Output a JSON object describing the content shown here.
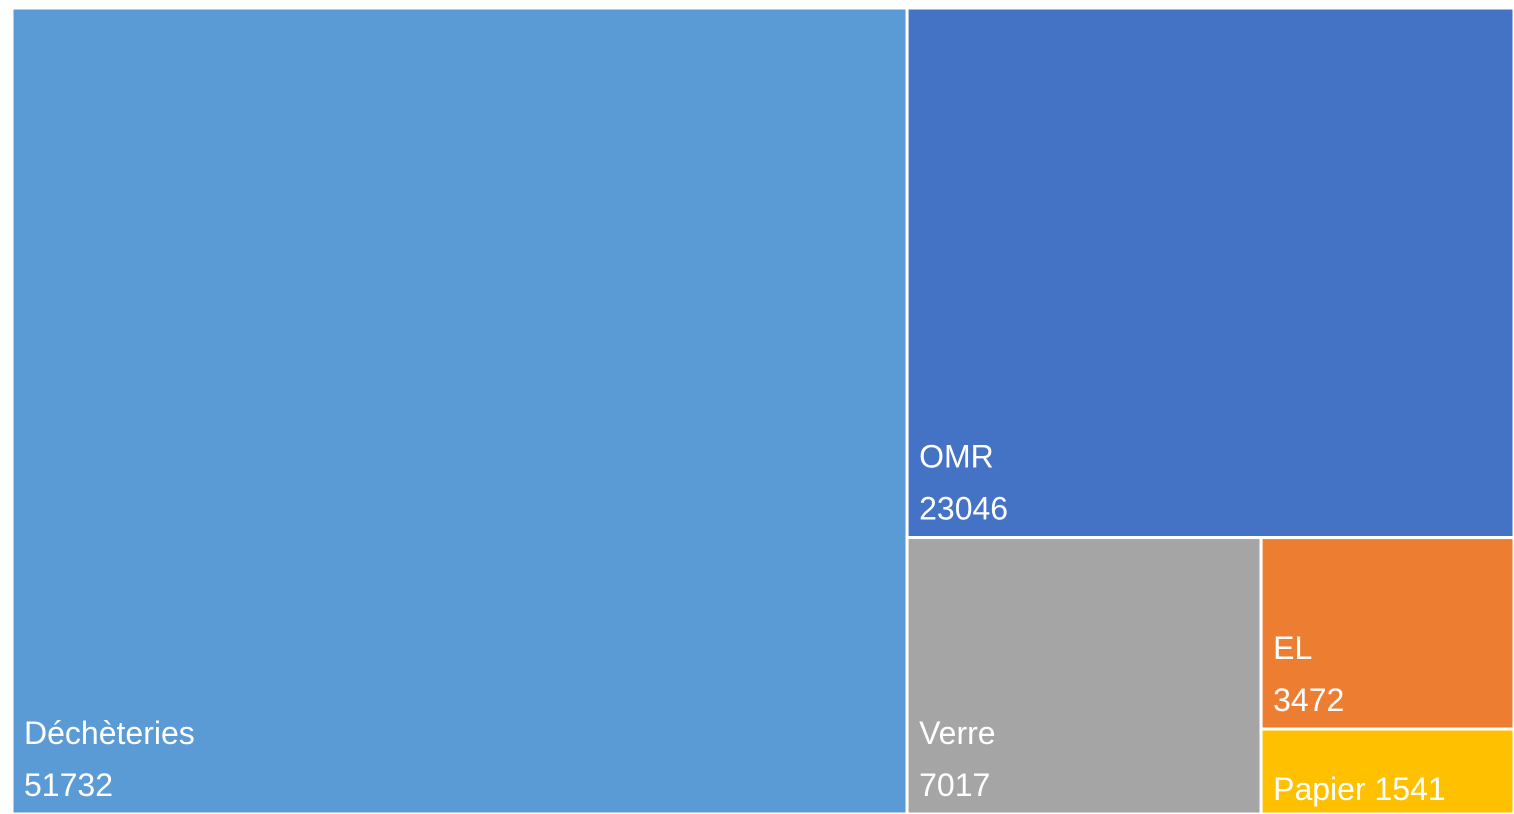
{
  "chart_data": {
    "type": "treemap",
    "categories": [
      "Déchèteries",
      "OMR",
      "Verre",
      "EL",
      "Papier"
    ],
    "values": [
      51732,
      23046,
      7017,
      3472,
      1541
    ],
    "colors": [
      "#5b9bd5",
      "#4472c4",
      "#a5a5a5",
      "#ed7d31",
      "#ffc000"
    ]
  }
}
